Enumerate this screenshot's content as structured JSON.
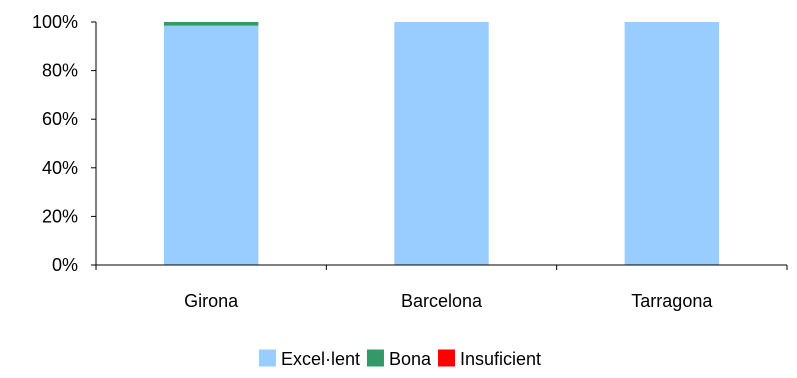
{
  "chart_data": {
    "type": "bar",
    "stacked": true,
    "normalized": true,
    "categories": [
      "Girona",
      "Barcelona",
      "Tarragona"
    ],
    "series": [
      {
        "name": "Excel·lent",
        "color": "#99CCFF",
        "values": [
          98.5,
          100,
          100
        ]
      },
      {
        "name": "Bona",
        "color": "#339966",
        "values": [
          1.5,
          0,
          0
        ]
      },
      {
        "name": "Insuficient",
        "color": "#FF0000",
        "values": [
          0,
          0,
          0
        ]
      }
    ],
    "ylim": [
      0,
      100
    ],
    "yticks": [
      "0%",
      "20%",
      "40%",
      "60%",
      "80%",
      "100%"
    ],
    "grid": false,
    "legend_position": "bottom"
  }
}
